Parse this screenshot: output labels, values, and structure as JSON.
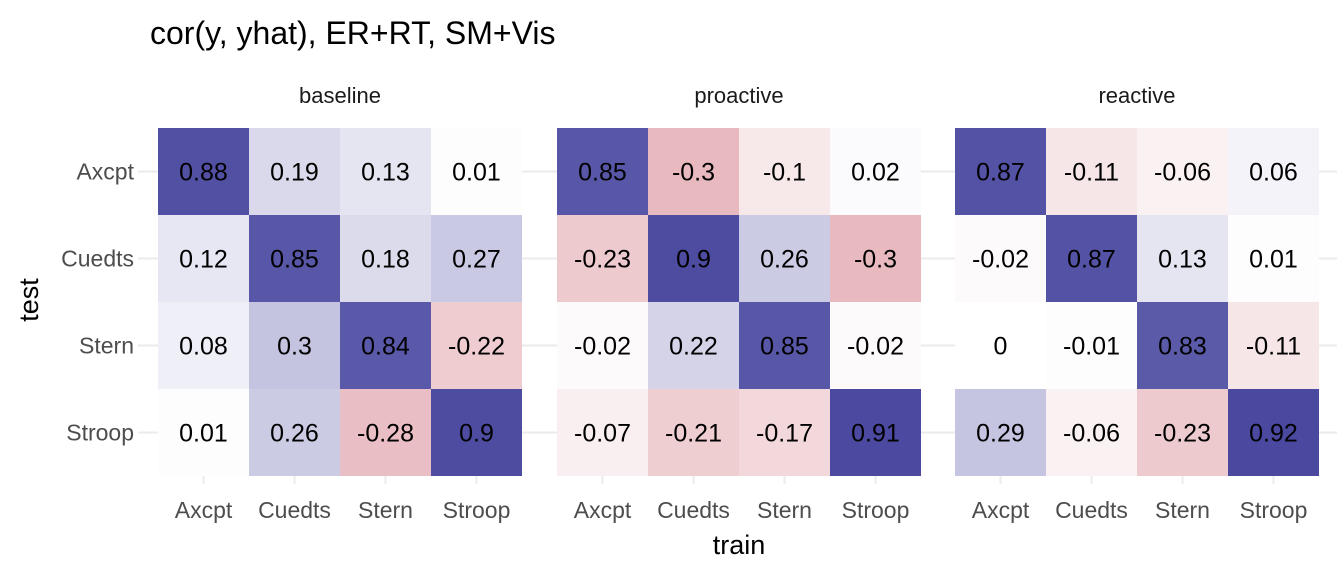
{
  "chart_data": {
    "type": "heatmap",
    "title": "cor(y, yhat), ER+RT, SM+Vis",
    "xlabel": "train",
    "ylabel": "test",
    "x_categories": [
      "Axcpt",
      "Cuedts",
      "Stern",
      "Stroop"
    ],
    "y_categories": [
      "Axcpt",
      "Cuedts",
      "Stern",
      "Stroop"
    ],
    "color_scale": {
      "low": "#B2182B",
      "mid": "#FFFFFF",
      "high": "#3A3897",
      "limits": [
        -1,
        1
      ]
    },
    "grid": true,
    "legend": "none",
    "facets": [
      {
        "name": "baseline",
        "values": [
          [
            0.88,
            0.19,
            0.13,
            0.01
          ],
          [
            0.12,
            0.85,
            0.18,
            0.27
          ],
          [
            0.08,
            0.3,
            0.84,
            -0.22
          ],
          [
            0.01,
            0.26,
            -0.28,
            0.9
          ]
        ]
      },
      {
        "name": "proactive",
        "values": [
          [
            0.85,
            -0.3,
            -0.1,
            0.02
          ],
          [
            -0.23,
            0.9,
            0.26,
            -0.3
          ],
          [
            -0.02,
            0.22,
            0.85,
            -0.02
          ],
          [
            -0.07,
            -0.21,
            -0.17,
            0.91
          ]
        ]
      },
      {
        "name": "reactive",
        "values": [
          [
            0.87,
            -0.11,
            -0.06,
            0.06
          ],
          [
            -0.02,
            0.87,
            0.13,
            0.01
          ],
          [
            0,
            -0.01,
            0.83,
            -0.11
          ],
          [
            0.29,
            -0.06,
            -0.23,
            0.92
          ]
        ]
      }
    ]
  }
}
